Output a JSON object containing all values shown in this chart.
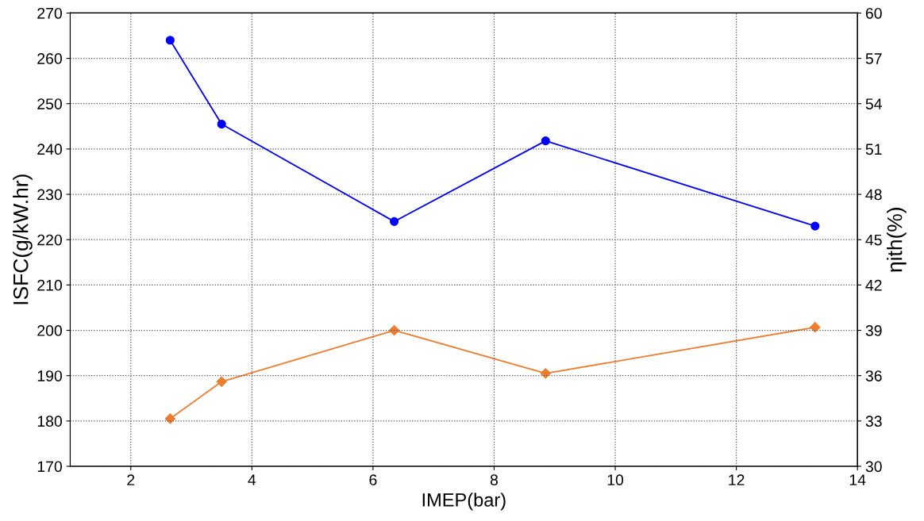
{
  "chart_data": {
    "type": "line",
    "xlabel": "IMEP(bar)",
    "ylabel": "ISFC(g/kW.hr)",
    "y2label": "ηith(%)",
    "xlim": [
      1,
      14
    ],
    "xticks": [
      2,
      4,
      6,
      8,
      10,
      12,
      14
    ],
    "ylim": [
      170,
      270
    ],
    "yticks": [
      170,
      180,
      190,
      200,
      210,
      220,
      230,
      240,
      250,
      260,
      270
    ],
    "y2lim": [
      30,
      60
    ],
    "y2ticks": [
      30,
      33,
      36,
      39,
      42,
      45,
      48,
      51,
      54,
      57,
      60
    ],
    "grid": true,
    "line_style": "solid",
    "series": [
      {
        "color": "#0000ff",
        "marker": "circle",
        "x": [
          2.65,
          3.5,
          6.35,
          8.85,
          13.3
        ],
        "values": [
          264,
          245.5,
          224,
          241.8,
          223
        ]
      },
      {
        "color": "#ed7d31",
        "marker": "diamond",
        "axis": "y2",
        "x": [
          2.65,
          3.5,
          6.35,
          8.85,
          13.3
        ],
        "values": [
          33.15,
          35.6,
          39.0,
          36.15,
          39.2
        ]
      }
    ]
  }
}
